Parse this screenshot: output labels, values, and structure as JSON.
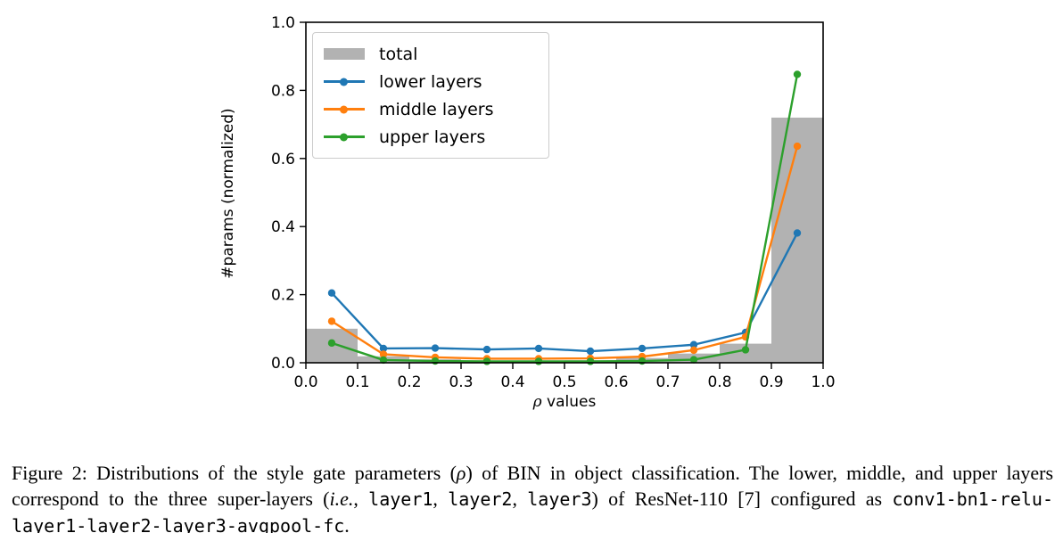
{
  "chart_data": {
    "type": "bar+line",
    "xlabel_symbol": "ρ",
    "xlabel_rest": " values",
    "ylabel": "#params (normalized)",
    "xlim": [
      0.0,
      1.0
    ],
    "ylim": [
      0.0,
      1.0
    ],
    "xticks": [
      "0.0",
      "0.1",
      "0.2",
      "0.3",
      "0.4",
      "0.5",
      "0.6",
      "0.7",
      "0.8",
      "0.9",
      "1.0"
    ],
    "yticks": [
      "0.0",
      "0.2",
      "0.4",
      "0.6",
      "0.8",
      "1.0"
    ],
    "grid": false,
    "legend_position": "upper left",
    "bin_edges": [
      0.0,
      0.1,
      0.2,
      0.3,
      0.4,
      0.5,
      0.6,
      0.7,
      0.8,
      0.9,
      1.0
    ],
    "categories": [
      0.05,
      0.15,
      0.25,
      0.35,
      0.45,
      0.55,
      0.65,
      0.75,
      0.85,
      0.95
    ],
    "bars": {
      "name": "total",
      "color": "#b2b2b2",
      "values": [
        0.1,
        0.019,
        0.01,
        0.006,
        0.006,
        0.007,
        0.014,
        0.027,
        0.056,
        0.72
      ]
    },
    "series": [
      {
        "name": "lower layers",
        "color": "#1f77b4",
        "values": [
          0.205,
          0.042,
          0.043,
          0.039,
          0.042,
          0.034,
          0.042,
          0.053,
          0.089,
          0.381
        ]
      },
      {
        "name": "middle layers",
        "color": "#ff7f0e",
        "values": [
          0.122,
          0.025,
          0.016,
          0.012,
          0.012,
          0.013,
          0.018,
          0.037,
          0.076,
          0.636
        ]
      },
      {
        "name": "upper layers",
        "color": "#2ca02c",
        "values": [
          0.058,
          0.008,
          0.005,
          0.004,
          0.004,
          0.004,
          0.005,
          0.009,
          0.038,
          0.847
        ]
      }
    ]
  },
  "legend": {
    "items": [
      {
        "label": "total"
      },
      {
        "label": "lower layers"
      },
      {
        "label": "middle layers"
      },
      {
        "label": "upper layers"
      }
    ]
  },
  "caption": {
    "segments": [
      {
        "t": "Figure 2: Distributions of the style gate parameters (",
        "f": "serif"
      },
      {
        "t": "ρ",
        "f": "italic"
      },
      {
        "t": ") of BIN in object classification. The lower, middle, and upper layers correspond to the three super-layers (",
        "f": "serif"
      },
      {
        "t": "i.e.",
        "f": "italic"
      },
      {
        "t": ", ",
        "f": "serif"
      },
      {
        "t": "layer1",
        "f": "mono"
      },
      {
        "t": ", ",
        "f": "serif"
      },
      {
        "t": "layer2",
        "f": "mono"
      },
      {
        "t": ", ",
        "f": "serif"
      },
      {
        "t": "layer3",
        "f": "mono"
      },
      {
        "t": ") of ResNet-110 [7] configured as ",
        "f": "serif"
      },
      {
        "t": "conv1-bn1-relu-layer1-layer2-layer3-avgpool-fc",
        "f": "mono"
      },
      {
        "t": ".",
        "f": "serif"
      }
    ]
  }
}
